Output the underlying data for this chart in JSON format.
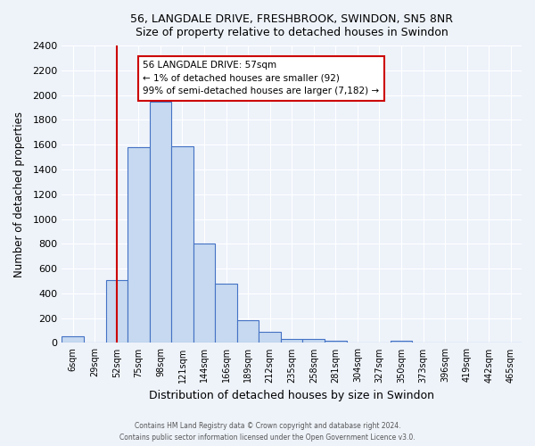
{
  "title1": "56, LANGDALE DRIVE, FRESHBROOK, SWINDON, SN5 8NR",
  "title2": "Size of property relative to detached houses in Swindon",
  "xlabel": "Distribution of detached houses by size in Swindon",
  "ylabel": "Number of detached properties",
  "bar_labels": [
    "6sqm",
    "29sqm",
    "52sqm",
    "75sqm",
    "98sqm",
    "121sqm",
    "144sqm",
    "166sqm",
    "189sqm",
    "212sqm",
    "235sqm",
    "258sqm",
    "281sqm",
    "304sqm",
    "327sqm",
    "350sqm",
    "373sqm",
    "396sqm",
    "419sqm",
    "442sqm",
    "465sqm"
  ],
  "bar_heights": [
    50,
    0,
    510,
    1580,
    1950,
    1590,
    800,
    480,
    185,
    90,
    30,
    30,
    20,
    0,
    0,
    20,
    0,
    0,
    0,
    0,
    0
  ],
  "bar_color": "#c6d9f0",
  "bar_edge_color": "#4472c4",
  "vline_x": 2,
  "vline_color": "#cc0000",
  "annotation_text": "56 LANGDALE DRIVE: 57sqm\n← 1% of detached houses are smaller (92)\n99% of semi-detached houses are larger (7,182) →",
  "annotation_box_color": "#ffffff",
  "annotation_box_edge": "#cc0000",
  "ylim": [
    0,
    2400
  ],
  "yticks": [
    0,
    200,
    400,
    600,
    800,
    1000,
    1200,
    1400,
    1600,
    1800,
    2000,
    2200,
    2400
  ],
  "footer1": "Contains HM Land Registry data © Crown copyright and database right 2024.",
  "footer2": "Contains public sector information licensed under the Open Government Licence v3.0.",
  "background_color": "#eef3fa",
  "plot_background": "#eef3fa"
}
